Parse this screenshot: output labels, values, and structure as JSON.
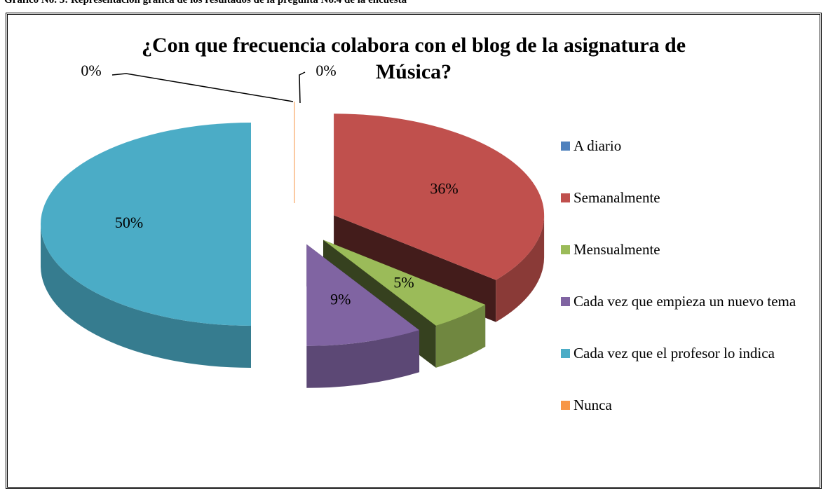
{
  "header": "Gráfico No. 3: Representación gráfica de los resultados de la pregunta No.4 de la encuesta",
  "chart_data": {
    "type": "pie",
    "title": "¿Con que frecuencia colabora con el blog de la asignatura de Música?",
    "categories": [
      "A diario",
      "Semanalmente",
      "Mensualmente",
      "Cada vez que empieza un nuevo tema",
      "Cada vez que el profesor lo indica",
      "Nunca"
    ],
    "values": [
      0,
      36,
      5,
      9,
      50,
      0
    ],
    "value_labels": [
      "0%",
      "36%",
      "5%",
      "9%",
      "50%",
      "0%"
    ],
    "colors": [
      "#4f81bd",
      "#c0504d",
      "#9bbb59",
      "#8064a2",
      "#4bacc6",
      "#f79646"
    ],
    "legend": "right",
    "exploded": true
  }
}
